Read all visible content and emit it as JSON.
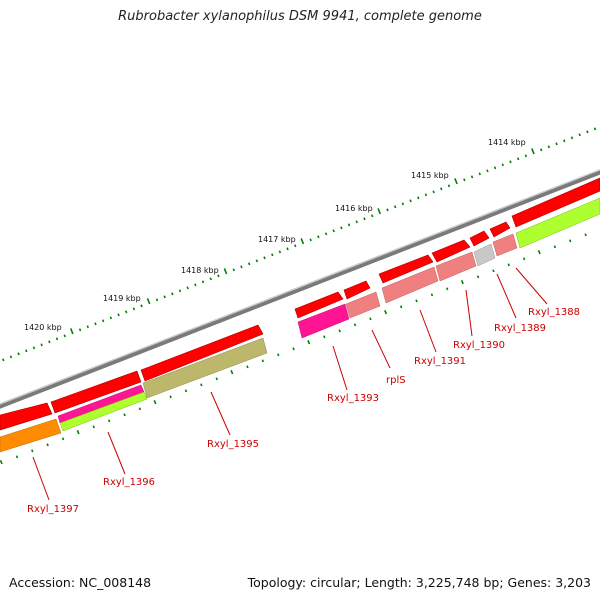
{
  "header": {
    "title": "Rubrobacter xylanophilus DSM 9941, complete genome"
  },
  "footer": {
    "accession": "Accession: NC_008148",
    "stats": "Topology: circular; Length: 3,225,748 bp; Genes: 3,203"
  },
  "ruler": {
    "labels": [
      "1414 kbp",
      "1415 kbp",
      "1416 kbp",
      "1417 kbp",
      "1418 kbp",
      "1419 kbp",
      "1420 kbp"
    ]
  },
  "colors": {
    "backbone": "#7d7d7d",
    "cds_forward": "#ff0000",
    "rna_pink": "#f08080",
    "magenta": "#ff1493",
    "lime": "#adff2f",
    "olive": "#bdb76b",
    "gray": "#c8c8c8",
    "orange": "#ff8c00",
    "tick": "#008000",
    "label": "#cc0000"
  },
  "genes": [
    {
      "name": "Rxyl_1388"
    },
    {
      "name": "Rxyl_1389"
    },
    {
      "name": "Rxyl_1390"
    },
    {
      "name": "Rxyl_1391"
    },
    {
      "name": "rplS"
    },
    {
      "name": "Rxyl_1393"
    },
    {
      "name": "Rxyl_1395"
    },
    {
      "name": "Rxyl_1396"
    },
    {
      "name": "Rxyl_1397"
    }
  ]
}
